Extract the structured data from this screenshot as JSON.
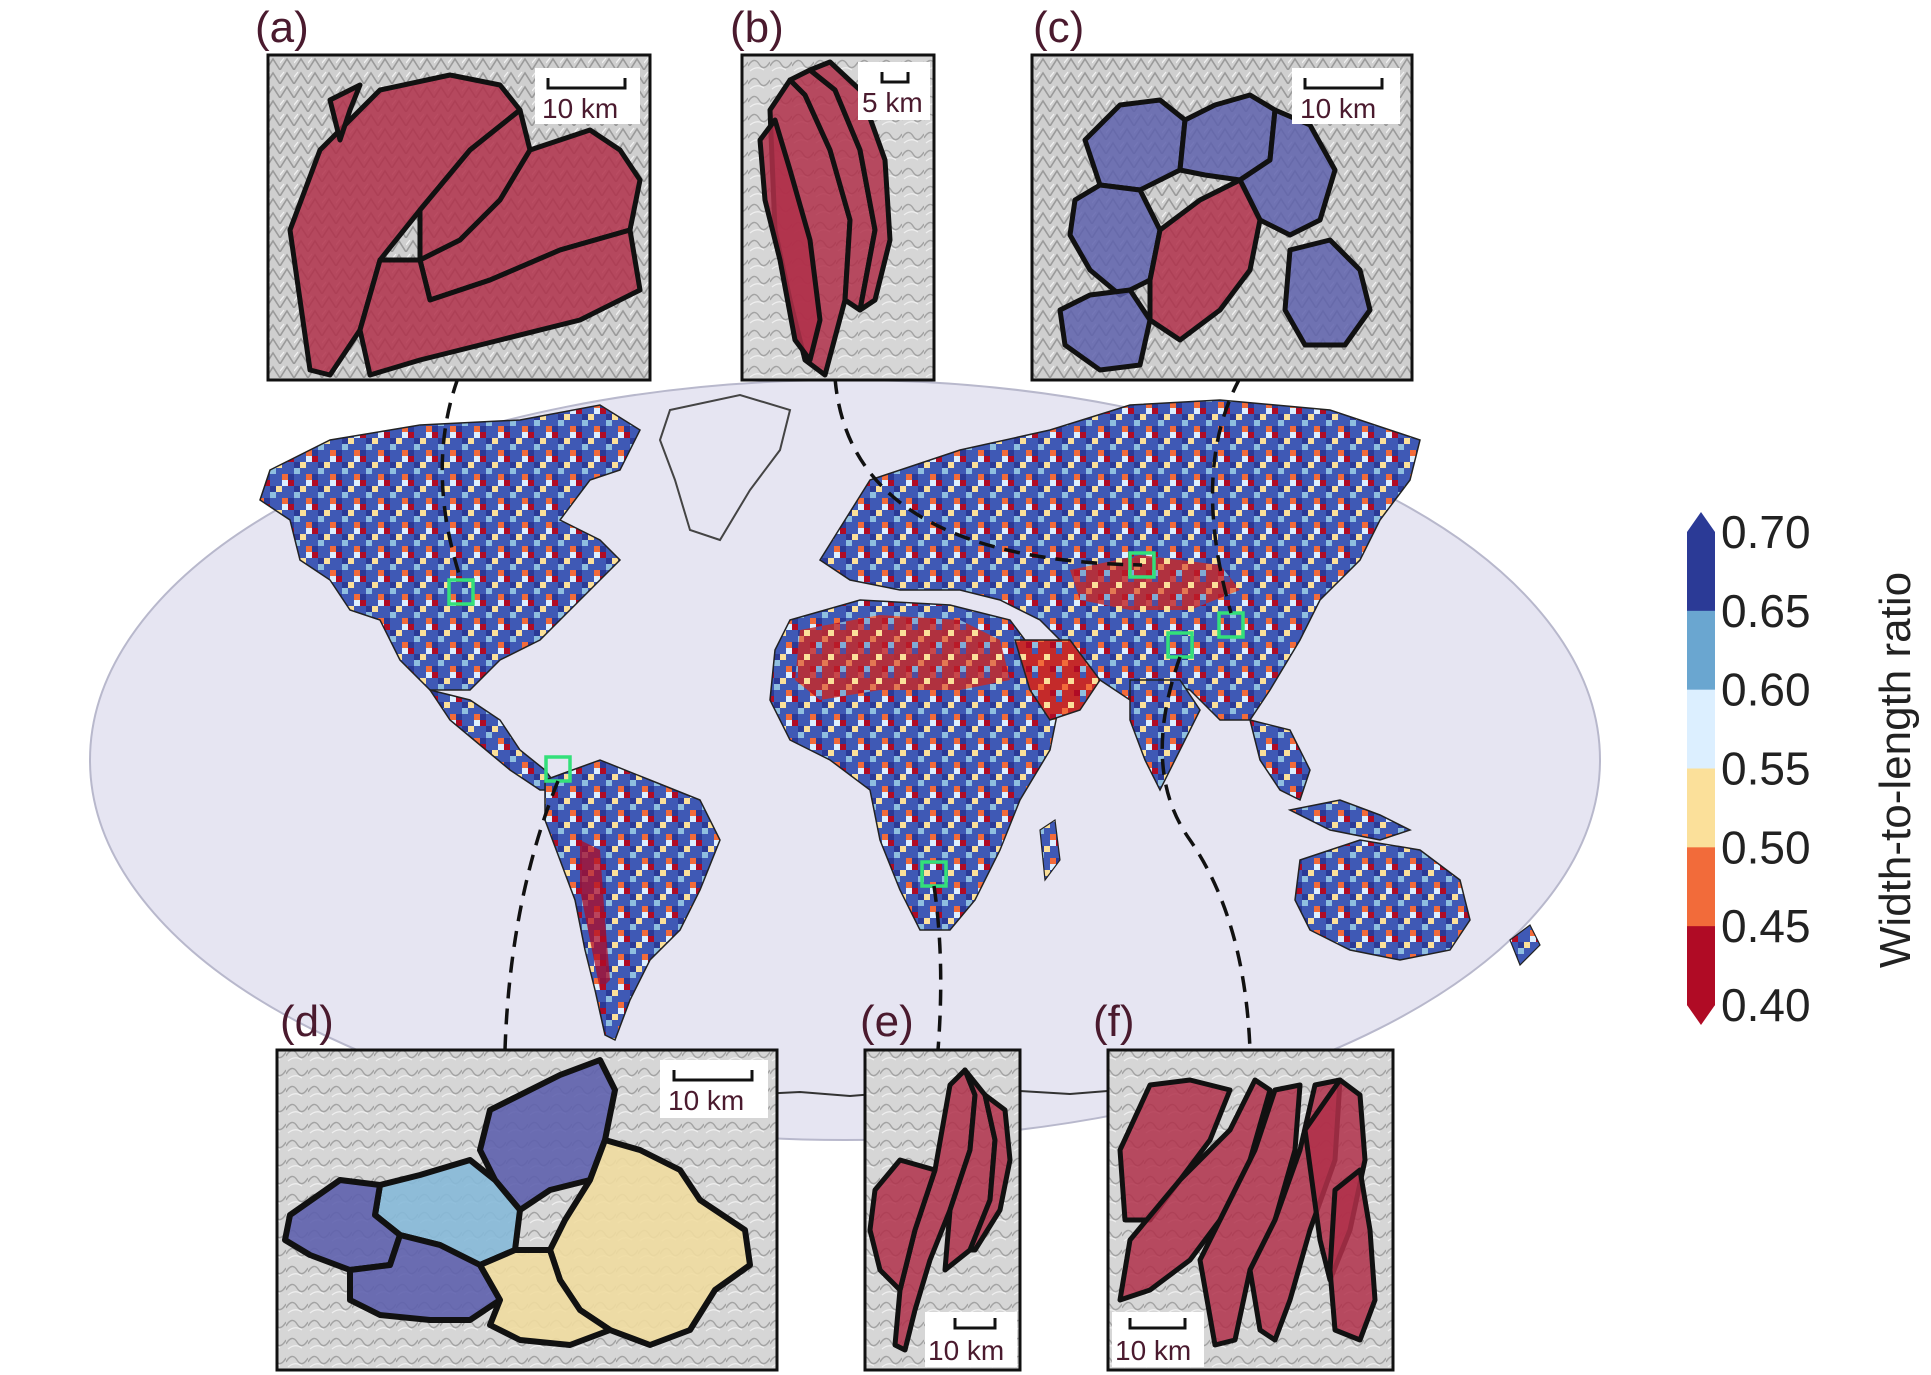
{
  "figure": {
    "panels": [
      {
        "id": "a",
        "label": "(a)",
        "scale": "10 km"
      },
      {
        "id": "b",
        "label": "(b)",
        "scale": "5 km"
      },
      {
        "id": "c",
        "label": "(c)",
        "scale": "10 km"
      },
      {
        "id": "d",
        "label": "(d)",
        "scale": "10 km"
      },
      {
        "id": "e",
        "label": "(e)",
        "scale": "10 km"
      },
      {
        "id": "f",
        "label": "(f)",
        "scale": "10 km"
      }
    ],
    "colorbar": {
      "title": "Width-to-length ratio",
      "ticks": [
        "0.70",
        "0.65",
        "0.60",
        "0.55",
        "0.50",
        "0.45",
        "0.40"
      ],
      "bins": [
        {
          "range": "0.65-0.70",
          "color": "#2b3a96"
        },
        {
          "range": "0.60-0.65",
          "color": "#6aa6d0"
        },
        {
          "range": "0.55-0.60",
          "color": "#dcefff"
        },
        {
          "range": "0.50-0.55",
          "color": "#fbe09a"
        },
        {
          "range": "0.45-0.50",
          "color": "#f26b3a"
        },
        {
          "range": "0.40-0.45",
          "color": "#b00b25"
        }
      ],
      "extend": "both"
    },
    "colors": {
      "ocean": "#e6e5f2",
      "basin_red": "#b0304a",
      "basin_blue": "#5e61ad",
      "basin_lightblue": "#86b9d8",
      "basin_yellow": "#f0dba0",
      "highlight": "#33e07a"
    }
  }
}
